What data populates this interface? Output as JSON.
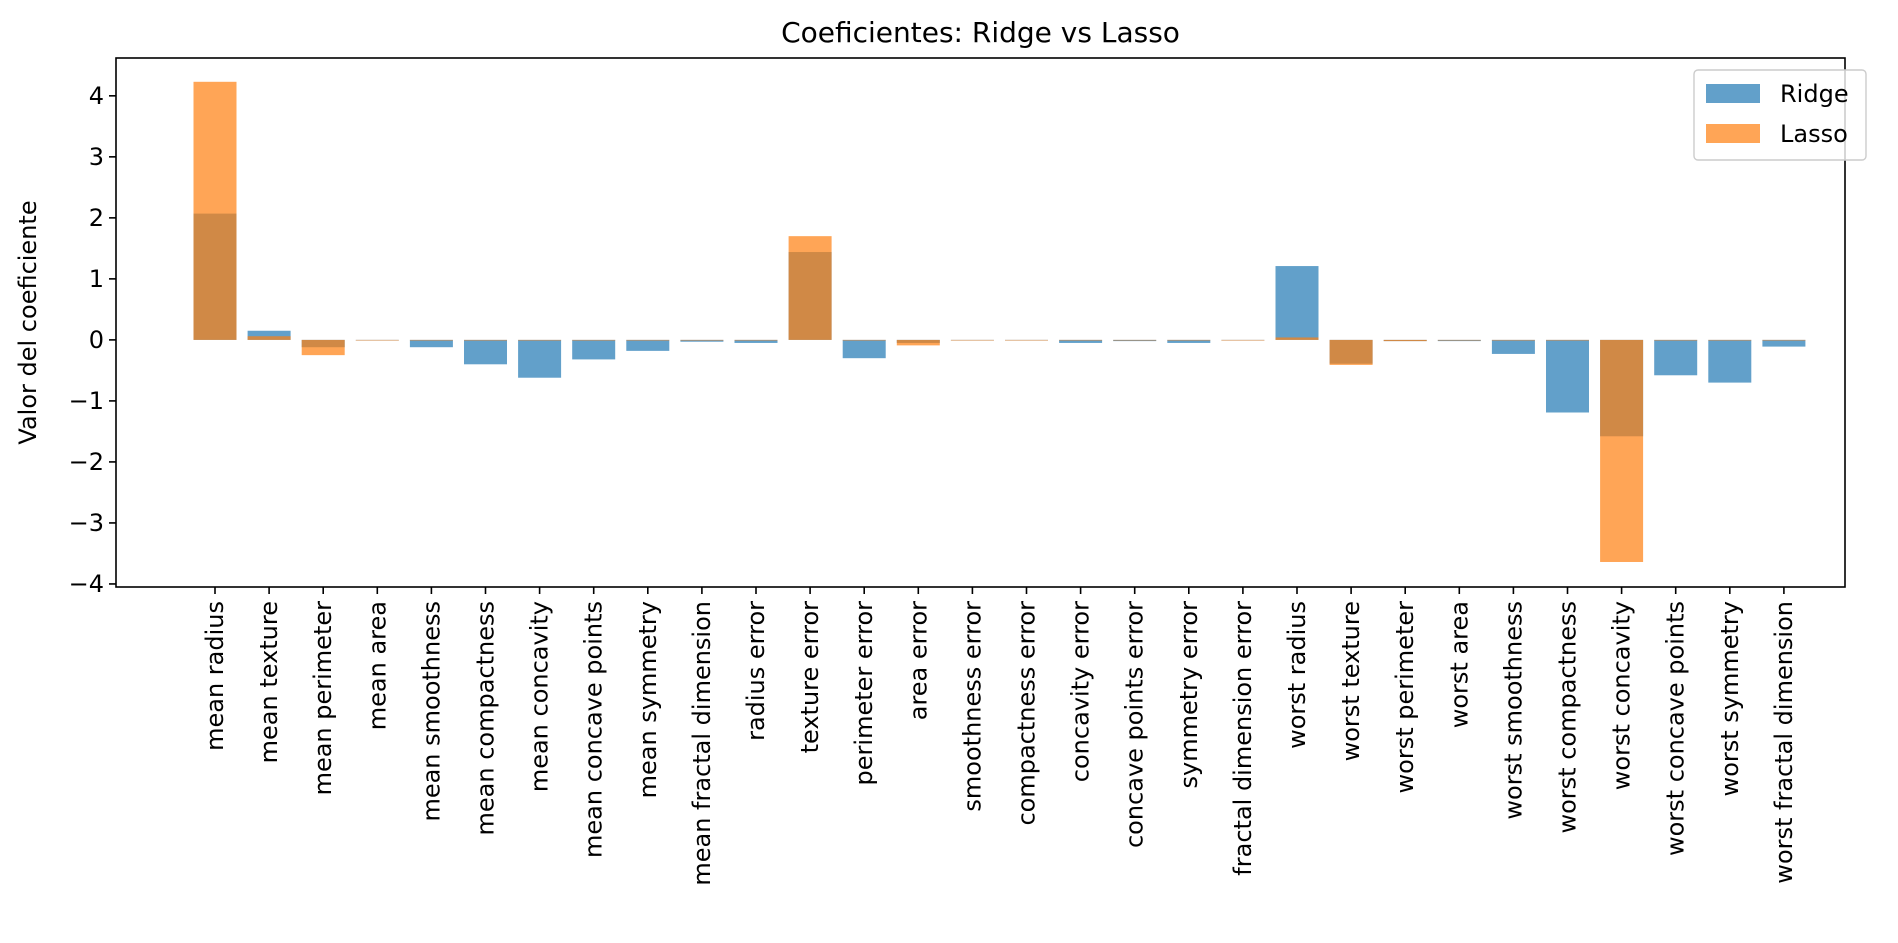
{
  "chart_data": {
    "type": "bar",
    "title": "Coeficientes: Ridge vs Lasso",
    "xlabel": "",
    "ylabel": "Valor del coeficiente",
    "ylim": [
      -4.05,
      4.62
    ],
    "yticks": [
      -4,
      -3,
      -2,
      -1,
      0,
      1,
      2,
      3,
      4
    ],
    "ytick_labels": [
      "−4",
      "−3",
      "−2",
      "−1",
      "0",
      "1",
      "2",
      "3",
      "4"
    ],
    "grid": false,
    "legend_position": "top-right",
    "overlay": true,
    "categories": [
      "mean radius",
      "mean texture",
      "mean perimeter",
      "mean area",
      "mean smoothness",
      "mean compactness",
      "mean concavity",
      "mean concave points",
      "mean symmetry",
      "mean fractal dimension",
      "radius error",
      "texture error",
      "perimeter error",
      "area error",
      "smoothness error",
      "compactness error",
      "concavity error",
      "concave points error",
      "symmetry error",
      "fractal dimension error",
      "worst radius",
      "worst texture",
      "worst perimeter",
      "worst area",
      "worst smoothness",
      "worst compactness",
      "worst concavity",
      "worst concave points",
      "worst symmetry",
      "worst fractal dimension"
    ],
    "series": [
      {
        "name": "Ridge",
        "color": "#1f77b4",
        "opacity": 0.7,
        "values": [
          2.07,
          0.15,
          -0.12,
          -0.01,
          -0.12,
          -0.4,
          -0.62,
          -0.32,
          -0.18,
          -0.03,
          -0.05,
          1.44,
          -0.3,
          -0.05,
          -0.01,
          -0.01,
          -0.05,
          -0.02,
          -0.05,
          0.0,
          1.21,
          -0.39,
          -0.02,
          -0.02,
          -0.23,
          -1.19,
          -1.58,
          -0.58,
          -0.7,
          -0.11
        ]
      },
      {
        "name": "Lasso",
        "color": "#ff7f0e",
        "opacity": 0.7,
        "values": [
          4.23,
          0.06,
          -0.25,
          0.0,
          0.0,
          0.0,
          0.0,
          0.0,
          0.0,
          0.0,
          0.0,
          1.7,
          0.0,
          -0.09,
          0.0,
          0.0,
          0.0,
          0.0,
          0.0,
          0.0,
          0.04,
          -0.41,
          -0.02,
          -0.01,
          0.0,
          0.0,
          -3.64,
          0.0,
          0.0,
          0.0
        ]
      }
    ]
  }
}
